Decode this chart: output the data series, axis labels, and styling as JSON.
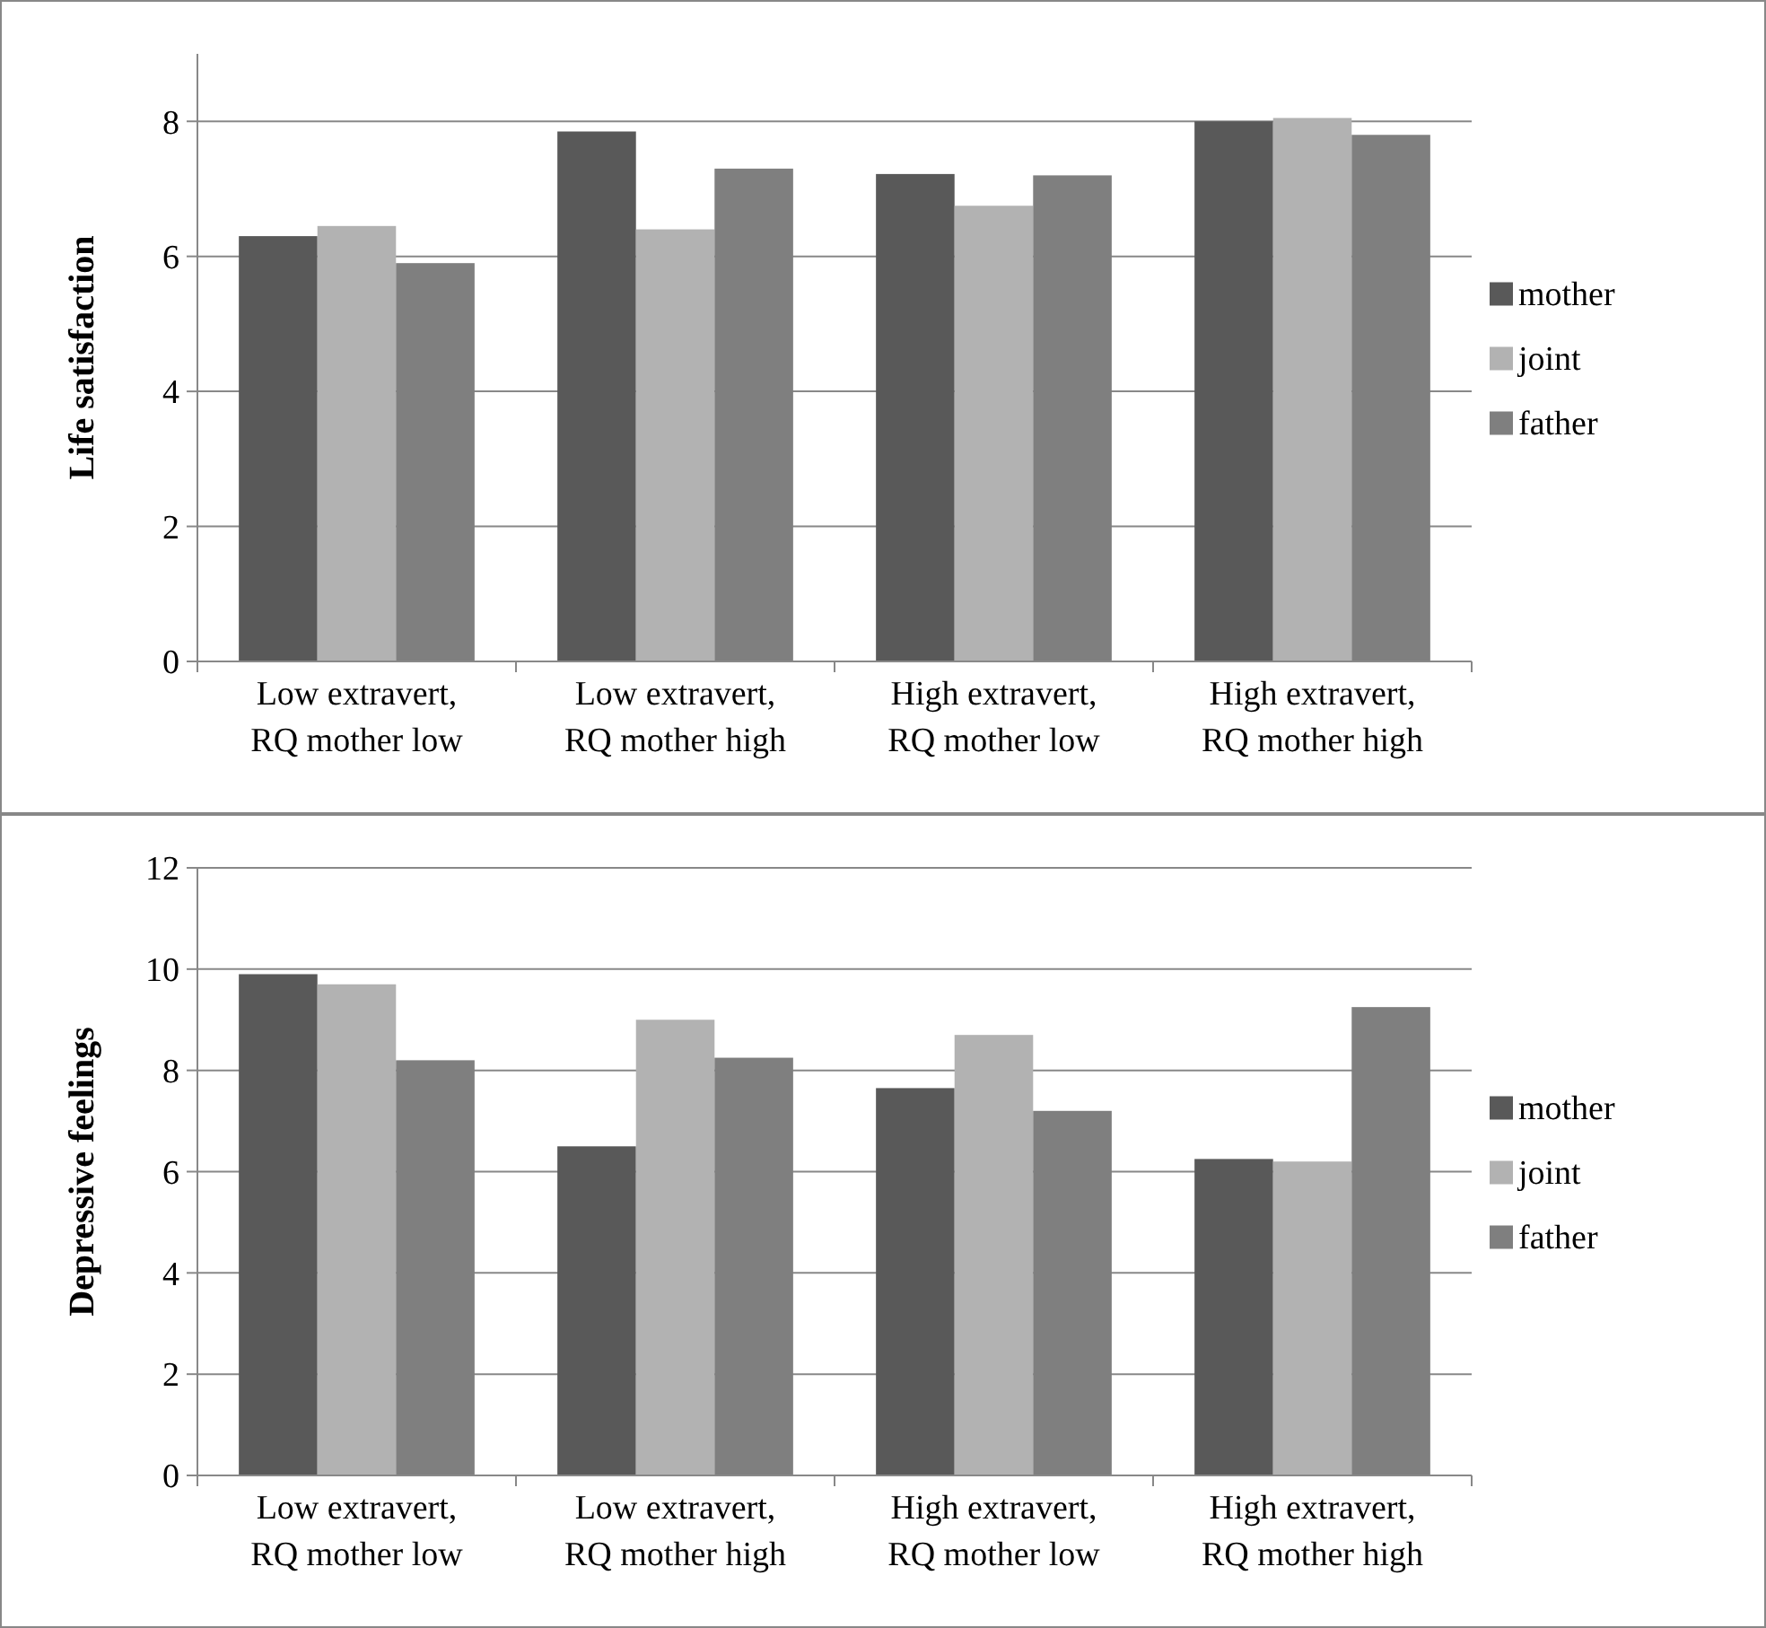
{
  "chart_data": [
    {
      "type": "bar",
      "ylabel": "Life satisfaction",
      "categories": [
        "Low extravert, RQ mother low",
        "Low extravert, RQ mother high",
        "High extravert, RQ mother low",
        "High extravert, RQ mother high"
      ],
      "series": [
        {
          "name": "mother",
          "color": "#595959",
          "values": [
            6.3,
            7.85,
            7.22,
            8.0
          ]
        },
        {
          "name": "joint",
          "color": "#b2b2b2",
          "values": [
            6.45,
            6.4,
            6.75,
            8.05
          ]
        },
        {
          "name": "father",
          "color": "#7f7f7f",
          "values": [
            5.9,
            7.3,
            7.2,
            7.8
          ]
        }
      ],
      "ylim": [
        0,
        9
      ],
      "yticks": [
        0,
        2,
        4,
        6,
        8
      ],
      "grid": "y",
      "legend": "right"
    },
    {
      "type": "bar",
      "ylabel": "Depressive feelings",
      "categories": [
        "Low extravert, RQ mother low",
        "Low extravert, RQ mother high",
        "High extravert, RQ mother low",
        "High extravert, RQ mother high"
      ],
      "series": [
        {
          "name": "mother",
          "color": "#595959",
          "values": [
            9.9,
            6.5,
            7.65,
            6.25
          ]
        },
        {
          "name": "joint",
          "color": "#b2b2b2",
          "values": [
            9.7,
            9.0,
            8.7,
            6.2
          ]
        },
        {
          "name": "father",
          "color": "#7f7f7f",
          "values": [
            8.2,
            8.25,
            7.2,
            9.25
          ]
        }
      ],
      "ylim": [
        0,
        12
      ],
      "yticks": [
        0,
        2,
        4,
        6,
        8,
        10,
        12
      ],
      "grid": "y",
      "legend": "right"
    }
  ]
}
